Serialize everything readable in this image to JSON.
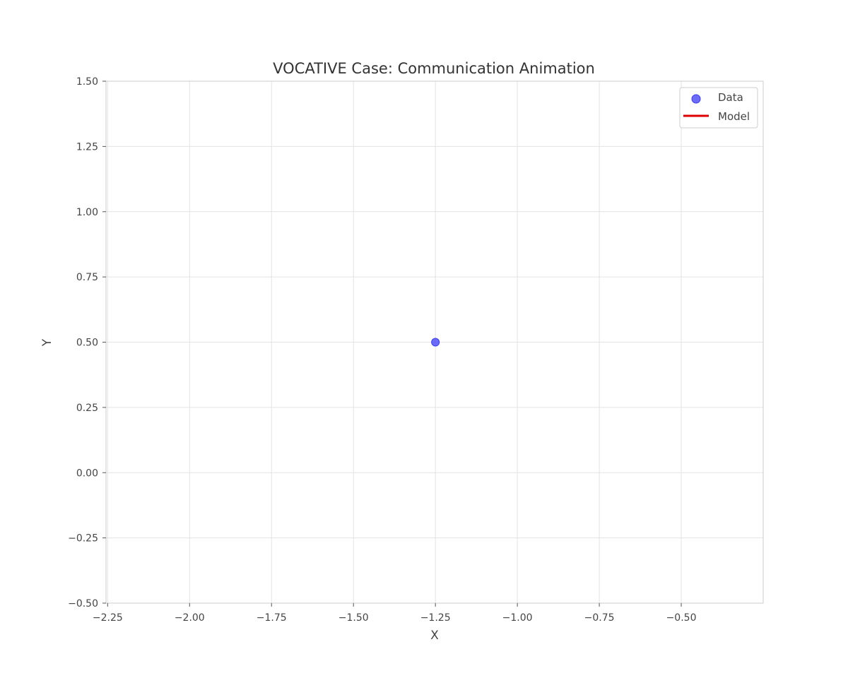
{
  "chart_data": {
    "type": "scatter",
    "title": "VOCATIVE Case: Communication Animation",
    "xlabel": "X",
    "ylabel": "Y",
    "xlim": [
      -2.255,
      -0.25
    ],
    "ylim": [
      -0.5,
      1.5
    ],
    "xticks": [
      -2.25,
      -2.0,
      -1.75,
      -1.5,
      -1.25,
      -1.0,
      -0.75,
      -0.5
    ],
    "xtick_labels": [
      "−2.25",
      "−2.00",
      "−1.75",
      "−1.50",
      "−1.25",
      "−1.00",
      "−0.75",
      "−0.50"
    ],
    "yticks": [
      1.5,
      1.25,
      1.0,
      0.75,
      0.5,
      0.25,
      0.0,
      -0.25,
      -0.5
    ],
    "ytick_labels": [
      "1.50",
      "1.25",
      "1.00",
      "0.75",
      "0.50",
      "0.25",
      "0.00",
      "−0.25",
      "−0.50"
    ],
    "grid": true,
    "legend_position": "top-right",
    "series": [
      {
        "name": "Data",
        "kind": "scatter",
        "color": "#3b3bf5",
        "points": [
          {
            "x": -1.25,
            "y": 0.5
          }
        ]
      },
      {
        "name": "Model",
        "kind": "line",
        "color": "#e00000",
        "points": []
      }
    ]
  }
}
